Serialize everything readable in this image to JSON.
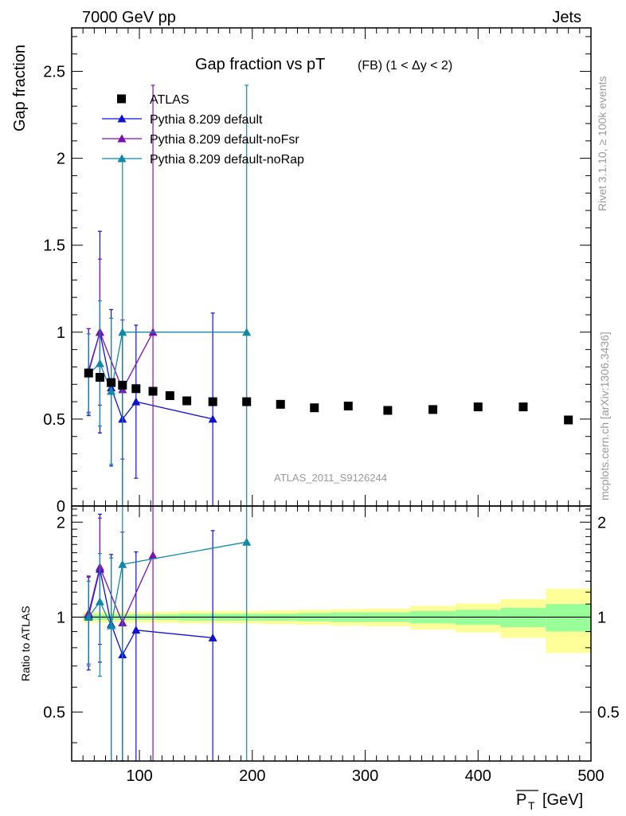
{
  "header": {
    "left": "7000 GeV pp",
    "right": "Jets"
  },
  "side": {
    "rivet": "Rivet 3.1.10, ≥ 100k events",
    "mcplots": "mcplots.cern.ch [arXiv:1306.3436]"
  },
  "chart_data": {
    "type": "scatter",
    "title": "Gap fraction vs pT",
    "title_sub": "(FB) (1 < Δy < 2)",
    "analysis": "ATLAS_2011_S9126244",
    "xlabel": "P̅T [GeV]",
    "xlabel_main": "P",
    "xlabel_sub": "T",
    "xlabel_unit": "[GeV]",
    "ylabel": "Gap fraction",
    "ratio_ylabel": "Ratio to ATLAS",
    "xlim": [
      40,
      500
    ],
    "ylim": [
      0,
      2.75
    ],
    "ratio_ylim": [
      0.35,
      2.25
    ],
    "x_ticks": [
      "100",
      "200",
      "300",
      "400",
      "500"
    ],
    "y_ticks": [
      "0",
      "0.5",
      "1",
      "1.5",
      "2",
      "2.5"
    ],
    "ratio_y_ticks": [
      "0.5",
      "1",
      "2"
    ],
    "legend": [
      "ATLAS",
      "Pythia 8.209 default",
      "Pythia 8.209 default-noFsr",
      "Pythia 8.209 default-noRap"
    ],
    "legend_position": "top-left",
    "colors": {
      "data": "#000000",
      "default": "#1010d0",
      "noFsr": "#7a10b0",
      "noRap": "#1288a8",
      "band_inner": "#99ff99",
      "band_outer": "#ffff99"
    },
    "data": {
      "x": [
        55,
        65,
        75,
        85,
        97,
        112,
        127,
        142,
        165,
        195,
        225,
        255,
        285,
        320,
        360,
        400,
        440,
        480
      ],
      "y": [
        0.765,
        0.74,
        0.71,
        0.695,
        0.675,
        0.66,
        0.635,
        0.605,
        0.6,
        0.6,
        0.585,
        0.565,
        0.575,
        0.55,
        0.555,
        0.57,
        0.57,
        0.495
      ],
      "band_edges": [
        50,
        60,
        70,
        80,
        90,
        105,
        120,
        135,
        150,
        180,
        210,
        240,
        270,
        300,
        340,
        380,
        420,
        460,
        500
      ],
      "band_inner": [
        0.02,
        0.02,
        0.02,
        0.02,
        0.02,
        0.02,
        0.02,
        0.025,
        0.025,
        0.025,
        0.025,
        0.03,
        0.035,
        0.035,
        0.045,
        0.055,
        0.07,
        0.1
      ],
      "band_outer": [
        0.04,
        0.04,
        0.04,
        0.04,
        0.04,
        0.04,
        0.04,
        0.045,
        0.045,
        0.045,
        0.05,
        0.055,
        0.06,
        0.065,
        0.085,
        0.105,
        0.14,
        0.23
      ]
    },
    "series": [
      {
        "name": "Pythia 8.209 default",
        "key": "default",
        "x": [
          55,
          65,
          75,
          85,
          97,
          165
        ],
        "y": [
          0.77,
          1.0,
          0.68,
          0.5,
          0.6,
          0.5
        ],
        "err": [
          0.25,
          0.58,
          0.45,
          0.5,
          0.44,
          0.61
        ],
        "ratio": [
          1.01,
          1.42,
          0.95,
          0.76,
          0.91,
          0.86
        ],
        "ratio_err": [
          0.33,
          0.7,
          0.63,
          0.72,
          0.7,
          1.02
        ]
      },
      {
        "name": "Pythia 8.209 default-noFsr",
        "key": "noFsr",
        "x": [
          55,
          65,
          85,
          112
        ],
        "y": [
          0.78,
          1.0,
          0.67,
          1.0
        ],
        "err": [
          0.24,
          0.42,
          0.4,
          1.42
        ],
        "ratio": [
          1.03,
          1.44,
          0.96,
          1.57
        ],
        "ratio_err": [
          0.32,
          0.62,
          0.9,
          1.84
        ]
      },
      {
        "name": "Pythia 8.209 default-noRap",
        "key": "noRap",
        "x": [
          55,
          65,
          75,
          85,
          195
        ],
        "y": [
          0.76,
          0.82,
          0.66,
          1.0,
          1.0
        ],
        "err": [
          0.23,
          0.36,
          0.42,
          1.0,
          1.42
        ],
        "ratio": [
          1.0,
          1.12,
          0.94,
          1.47,
          1.73
        ],
        "ratio_err": [
          0.3,
          0.47,
          0.6,
          1.7,
          2.1
        ]
      }
    ]
  }
}
